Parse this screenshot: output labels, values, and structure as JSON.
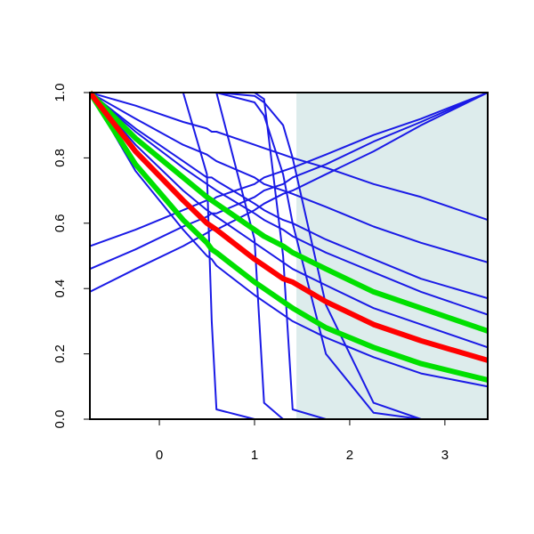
{
  "chart_data": {
    "type": "line",
    "x": [
      -0.73,
      -0.25,
      0.25,
      0.5,
      0.55,
      0.6,
      1.0,
      1.1,
      1.3,
      1.4,
      1.75,
      2.25,
      2.75,
      3.45
    ],
    "xlim": [
      -0.73,
      3.45
    ],
    "ylim": [
      0,
      1
    ],
    "xticks": [
      0,
      1,
      2,
      3
    ],
    "yticks": [
      {
        "value": 0,
        "label": "0.0"
      },
      {
        "value": 0.2,
        "label": "0.2"
      },
      {
        "value": 0.4,
        "label": "0.4"
      },
      {
        "value": 0.6,
        "label": "0.6"
      },
      {
        "value": 0.8,
        "label": "0.8"
      },
      {
        "value": 1,
        "label": "1.0"
      }
    ],
    "shade": [
      1.44,
      3.45
    ],
    "shade_color": "#ddecec",
    "series": [
      {
        "color": "#1a1ae6",
        "values": [
          1,
          0.96,
          0.91,
          0.89,
          0.88,
          0.88,
          0.84,
          0.83,
          0.81,
          0.8,
          0.77,
          0.72,
          0.68,
          0.61
        ]
      },
      {
        "color": "#1a1ae6",
        "values": [
          1,
          0.92,
          0.84,
          0.81,
          0.8,
          0.79,
          0.74,
          0.72,
          0.7,
          0.69,
          0.65,
          0.59,
          0.54,
          0.48
        ]
      },
      {
        "color": "#1a1ae6",
        "values": [
          1,
          0.89,
          0.79,
          0.74,
          0.74,
          0.73,
          0.66,
          0.64,
          0.61,
          0.6,
          0.55,
          0.49,
          0.43,
          0.37
        ]
      },
      {
        "color": "#1a1ae6",
        "values": [
          1,
          0.88,
          0.77,
          0.72,
          0.71,
          0.7,
          0.63,
          0.61,
          0.58,
          0.56,
          0.51,
          0.45,
          0.39,
          0.32
        ]
      },
      {
        "color": "#1a1ae6",
        "values": [
          1,
          0.84,
          0.7,
          0.64,
          0.63,
          0.62,
          0.54,
          0.52,
          0.48,
          0.46,
          0.41,
          0.34,
          0.29,
          0.22
        ]
      },
      {
        "color": "#1a1ae6",
        "values": [
          1,
          0.76,
          0.58,
          0.5,
          0.49,
          0.47,
          0.38,
          0.36,
          0.32,
          0.3,
          0.25,
          0.19,
          0.14,
          0.1
        ]
      },
      {
        "color": "#1a1ae6",
        "values": [
          0.53,
          0.58,
          0.64,
          0.67,
          0.67,
          0.68,
          0.72,
          0.74,
          0.76,
          0.77,
          0.81,
          0.87,
          0.92,
          1.0
        ]
      },
      {
        "color": "#1a1ae6",
        "values": [
          0.46,
          0.52,
          0.59,
          0.62,
          0.63,
          0.63,
          0.68,
          0.7,
          0.72,
          0.74,
          0.78,
          0.85,
          0.91,
          1.0
        ]
      },
      {
        "color": "#1a1ae6",
        "values": [
          0.39,
          0.46,
          0.53,
          0.57,
          0.58,
          0.58,
          0.64,
          0.66,
          0.69,
          0.7,
          0.75,
          0.82,
          0.9,
          1.0
        ]
      },
      {
        "color": "#1a1ae6",
        "values": [
          1,
          1,
          1,
          0.75,
          0.3,
          0.03,
          0,
          0,
          0,
          0,
          0,
          0,
          0,
          0
        ]
      },
      {
        "color": "#1a1ae6",
        "values": [
          1,
          1,
          1,
          1,
          1,
          1,
          0.55,
          0.05,
          0,
          0,
          0,
          0,
          0,
          0
        ]
      },
      {
        "color": "#1a1ae6",
        "values": [
          1,
          1,
          1,
          1,
          1,
          1,
          1,
          0.98,
          0.5,
          0.03,
          0,
          0,
          0,
          0
        ]
      },
      {
        "color": "#1a1ae6",
        "values": [
          1,
          1,
          1,
          1,
          1,
          1,
          0.97,
          0.93,
          0.75,
          0.6,
          0.2,
          0.02,
          0,
          0
        ]
      },
      {
        "color": "#1a1ae6",
        "values": [
          1,
          1,
          1,
          1,
          1,
          1,
          0.99,
          0.97,
          0.9,
          0.8,
          0.35,
          0.05,
          0,
          0
        ]
      },
      {
        "color": "#00e000",
        "values": [
          1,
          0.86,
          0.74,
          0.68,
          0.67,
          0.66,
          0.58,
          0.56,
          0.53,
          0.51,
          0.46,
          0.39,
          0.34,
          0.27
        ]
      },
      {
        "color": "#00e000",
        "values": [
          1,
          0.78,
          0.61,
          0.54,
          0.52,
          0.51,
          0.42,
          0.4,
          0.36,
          0.34,
          0.28,
          0.22,
          0.17,
          0.12
        ]
      },
      {
        "color": "#ff0000",
        "values": [
          1,
          0.82,
          0.67,
          0.6,
          0.59,
          0.58,
          0.49,
          0.47,
          0.43,
          0.42,
          0.36,
          0.29,
          0.24,
          0.18
        ]
      }
    ]
  }
}
